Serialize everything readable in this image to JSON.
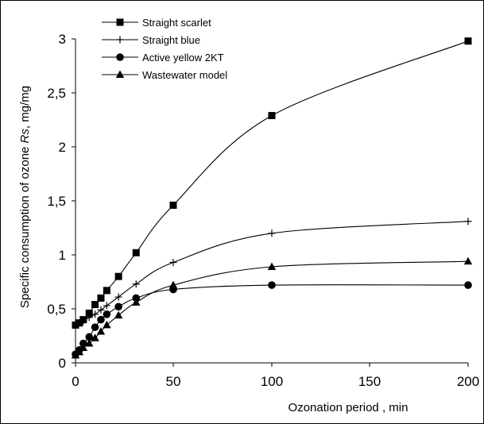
{
  "chart_data": {
    "type": "line",
    "title": "",
    "xlabel": "Ozonation period , min",
    "ylabel": {
      "prefix": "Specific consumption of ozone ",
      "symbol": "Rs",
      "suffix": ", mg/mg"
    },
    "xlim": [
      0,
      200
    ],
    "ylim": [
      0,
      3
    ],
    "x_ticks": [
      0,
      50,
      100,
      150,
      200
    ],
    "x_tick_labels": [
      "0",
      "50",
      "100",
      "150",
      "200"
    ],
    "y_ticks": [
      0,
      0.5,
      1,
      1.5,
      2,
      2.5,
      3
    ],
    "y_tick_labels": [
      "0",
      "0,5",
      "1",
      "1,5",
      "2",
      "2,5",
      "3"
    ],
    "x_axis_note": "axis compressed between 100 and 200 (100→150 and 150→200 segments each span 1/4 of plot width)",
    "grid": false,
    "legend_position": "top-left",
    "series": [
      {
        "name": "Straight scarlet",
        "marker": "square",
        "x": [
          0,
          2,
          4,
          7,
          10,
          13,
          16,
          22,
          31,
          50,
          100,
          200
        ],
        "y": [
          0.35,
          0.37,
          0.4,
          0.46,
          0.54,
          0.6,
          0.67,
          0.8,
          1.02,
          1.46,
          2.29,
          2.98
        ]
      },
      {
        "name": "Straight blue",
        "marker": "plus",
        "x": [
          0,
          2,
          4,
          7,
          10,
          13,
          16,
          22,
          31,
          50,
          100,
          200
        ],
        "y": [
          0.35,
          0.37,
          0.39,
          0.42,
          0.45,
          0.49,
          0.53,
          0.61,
          0.73,
          0.93,
          1.2,
          1.31
        ]
      },
      {
        "name": "Active yellow 2KT",
        "marker": "circle",
        "x": [
          0,
          2,
          4,
          7,
          10,
          13,
          16,
          22,
          31,
          50,
          100,
          200
        ],
        "y": [
          0.08,
          0.12,
          0.18,
          0.24,
          0.33,
          0.4,
          0.45,
          0.52,
          0.6,
          0.68,
          0.72,
          0.72
        ]
      },
      {
        "name": "Wastewater model",
        "marker": "triangle",
        "x": [
          0,
          2,
          4,
          7,
          10,
          13,
          16,
          22,
          31,
          50,
          100,
          200
        ],
        "y": [
          0.07,
          0.1,
          0.14,
          0.18,
          0.23,
          0.29,
          0.35,
          0.44,
          0.56,
          0.72,
          0.89,
          0.94
        ]
      }
    ],
    "line_color": "#000000",
    "marker_color": "#000000"
  }
}
